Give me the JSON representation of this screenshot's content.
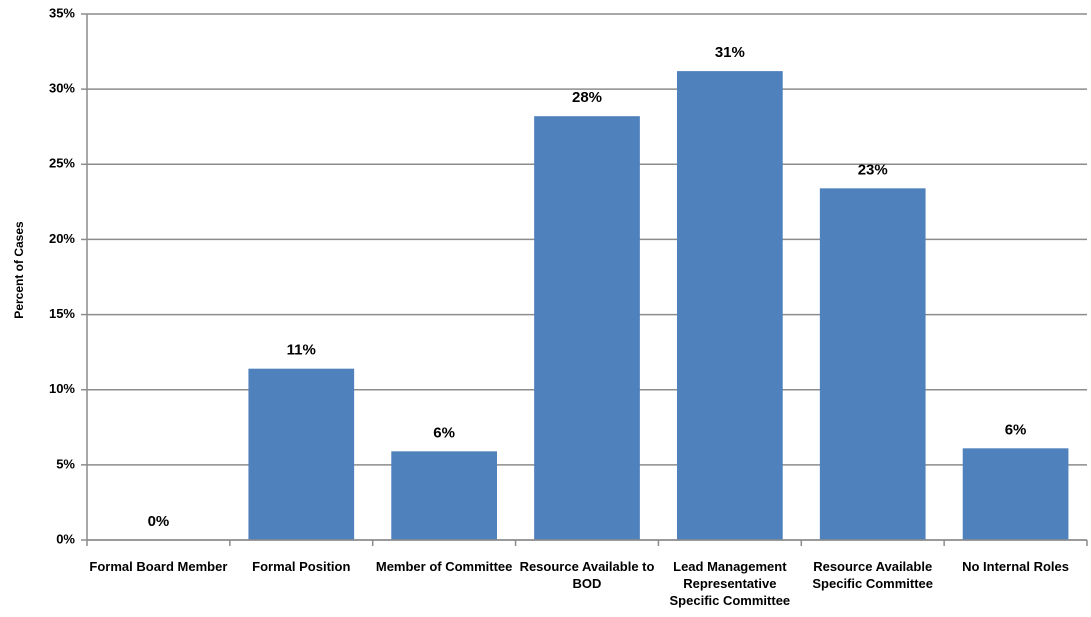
{
  "chart_data": {
    "type": "bar",
    "y_axis_label": "Percent of Cases",
    "categories": [
      "Formal Board Member",
      "Formal Position",
      "Member of Committee",
      "Resource Available to BOD",
      "Lead Management Representative Specific Committee",
      "Resource Available Specific Committee",
      "No Internal Roles"
    ],
    "values": [
      0,
      11.4,
      5.9,
      28.2,
      31.2,
      23.4,
      6.1
    ],
    "value_labels": [
      "0%",
      "11%",
      "6%",
      "28%",
      "31%",
      "23%",
      "6%"
    ],
    "color": "#4f81bd",
    "ylim": [
      0,
      35
    ],
    "yticks": [
      {
        "value": 0,
        "label": "0%"
      },
      {
        "value": 5,
        "label": "5%"
      },
      {
        "value": 10,
        "label": "10%"
      },
      {
        "value": 15,
        "label": "15%"
      },
      {
        "value": 20,
        "label": "20%"
      },
      {
        "value": 25,
        "label": "25%"
      },
      {
        "value": 30,
        "label": "30%"
      },
      {
        "value": 35,
        "label": "35%"
      }
    ],
    "grid": true
  }
}
